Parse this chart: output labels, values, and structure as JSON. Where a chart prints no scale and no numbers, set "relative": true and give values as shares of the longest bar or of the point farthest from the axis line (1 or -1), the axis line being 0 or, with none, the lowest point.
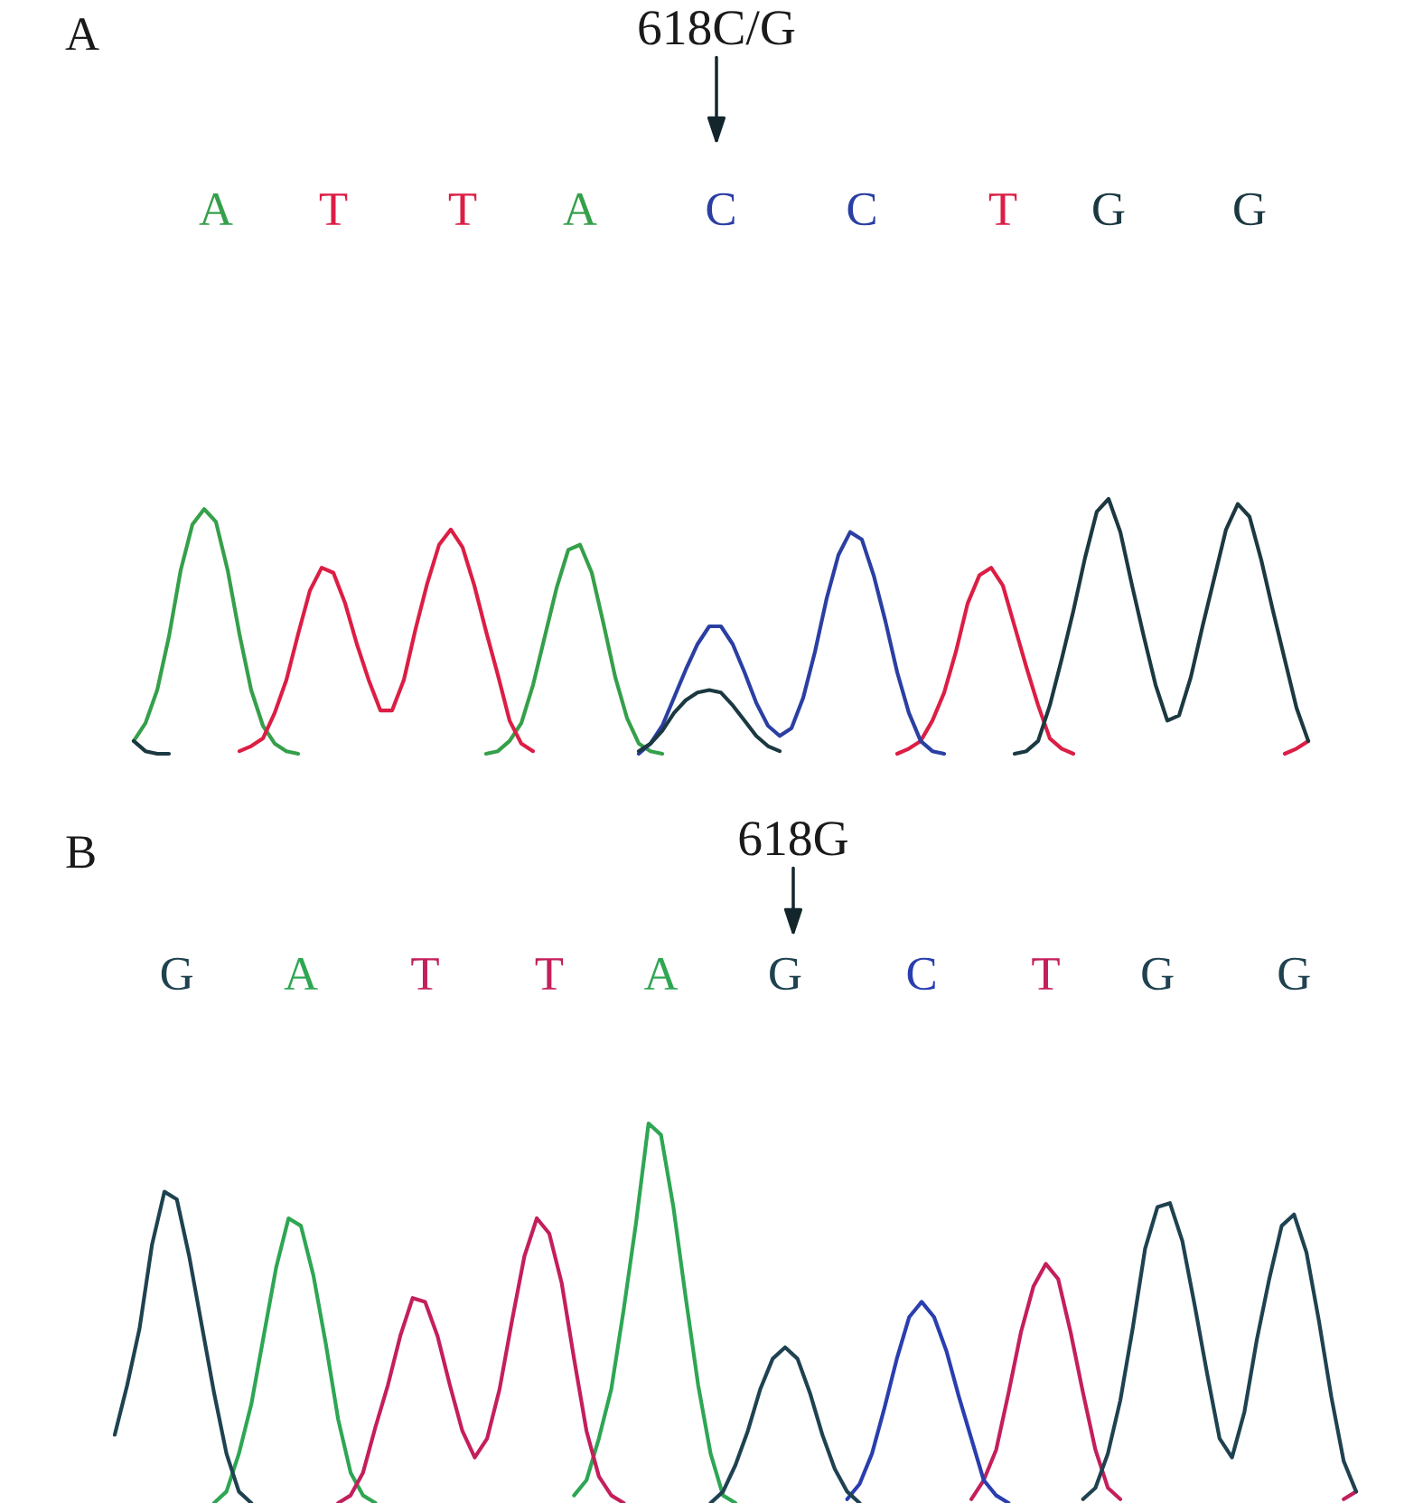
{
  "chart_data": [
    {
      "type": "line",
      "relative": true,
      "title": "A",
      "categories": [
        null,
        null,
        null,
        null,
        null,
        null,
        null,
        "A",
        null,
        null,
        null,
        null,
        null,
        null,
        null,
        null,
        null,
        "T",
        null,
        null,
        null,
        null,
        null,
        null,
        null,
        null,
        null,
        null,
        "T",
        null,
        null,
        null,
        null,
        null,
        null,
        null,
        null,
        null,
        "A",
        null,
        null,
        null,
        null,
        null,
        null,
        null,
        null,
        null,
        null,
        null,
        "C",
        null,
        null,
        null,
        null,
        null,
        null,
        null,
        null,
        null,
        null,
        null,
        "C",
        null,
        null,
        null,
        null,
        null,
        null,
        null,
        null,
        null,
        null,
        null,
        "T",
        null,
        null,
        null,
        null,
        null,
        null,
        null,
        null,
        "G",
        null,
        null,
        null,
        null,
        null,
        null,
        null,
        null,
        null,
        null,
        null,
        "G",
        null,
        null,
        null,
        null,
        null
      ],
      "annotations": [
        "618C/G"
      ],
      "series": [
        {
          "color": "#35a04a",
          "values": [
            0.05,
            0.12,
            0.25,
            0.46,
            0.72,
            0.9,
            0.96,
            0.91,
            0.72,
            0.47,
            0.25,
            0.11,
            0.04,
            0.01,
            0.0,
            null,
            null,
            null,
            null,
            null,
            null,
            null,
            null,
            null,
            null,
            null,
            null,
            null,
            null,
            null,
            0.0,
            0.01,
            0.05,
            0.12,
            0.27,
            0.46,
            0.65,
            0.8,
            0.82,
            0.71,
            0.51,
            0.3,
            0.14,
            0.04,
            0.01,
            0.0,
            null,
            null,
            null,
            null,
            null,
            null,
            null,
            null,
            null,
            null,
            null,
            null,
            null,
            null,
            null,
            null,
            null,
            null,
            null,
            null,
            null,
            null,
            null,
            null,
            null,
            null,
            null,
            null,
            null,
            null,
            null,
            null,
            null,
            null,
            null,
            null,
            null,
            null,
            null,
            null,
            null,
            null,
            null,
            null,
            null,
            null,
            null,
            null,
            null,
            null,
            null,
            null,
            null,
            null,
            null
          ]
        },
        {
          "color": "#dc1e45",
          "values": [
            null,
            null,
            null,
            null,
            null,
            null,
            null,
            null,
            null,
            0.01,
            0.03,
            0.06,
            0.16,
            0.29,
            0.47,
            0.64,
            0.73,
            0.71,
            0.59,
            0.43,
            0.29,
            0.17,
            0.17,
            0.29,
            0.49,
            0.67,
            0.82,
            0.88,
            0.81,
            0.66,
            0.48,
            0.31,
            0.13,
            0.04,
            0.01,
            null,
            null,
            null,
            null,
            null,
            null,
            null,
            null,
            null,
            null,
            null,
            null,
            null,
            null,
            null,
            null,
            null,
            null,
            null,
            null,
            null,
            null,
            null,
            null,
            null,
            null,
            null,
            null,
            null,
            null,
            0.0,
            0.02,
            0.05,
            0.13,
            0.24,
            0.4,
            0.59,
            0.7,
            0.73,
            0.66,
            0.5,
            0.34,
            0.19,
            0.06,
            0.02,
            0.0,
            null,
            null,
            null,
            null,
            null,
            null,
            null,
            null,
            null,
            null,
            null,
            null,
            null,
            null,
            null,
            null,
            null,
            0.0,
            0.02,
            0.05
          ]
        },
        {
          "color": "#2b3fa3",
          "values": [
            null,
            null,
            null,
            null,
            null,
            null,
            null,
            null,
            null,
            null,
            null,
            null,
            null,
            null,
            null,
            null,
            null,
            null,
            null,
            null,
            null,
            null,
            null,
            null,
            null,
            null,
            null,
            null,
            null,
            null,
            null,
            null,
            null,
            null,
            null,
            null,
            null,
            null,
            null,
            null,
            null,
            null,
            null,
            0.0,
            0.04,
            0.11,
            0.22,
            0.33,
            0.43,
            0.5,
            0.5,
            0.43,
            0.32,
            0.2,
            0.11,
            0.07,
            0.1,
            0.22,
            0.4,
            0.61,
            0.78,
            0.87,
            0.84,
            0.7,
            0.52,
            0.32,
            0.16,
            0.05,
            0.01,
            0.0,
            null,
            null,
            null,
            null,
            null,
            null,
            null,
            null,
            null,
            null,
            null,
            null,
            null,
            null,
            null,
            null,
            null,
            null,
            null,
            null,
            null,
            null,
            null,
            null,
            null,
            null,
            null,
            null,
            null,
            null,
            null
          ]
        },
        {
          "color": "#1c3942",
          "values": [
            0.05,
            0.01,
            0.0,
            0.0,
            null,
            null,
            null,
            null,
            null,
            null,
            null,
            null,
            null,
            null,
            null,
            null,
            null,
            null,
            null,
            null,
            null,
            null,
            null,
            null,
            null,
            null,
            null,
            null,
            null,
            null,
            null,
            null,
            null,
            null,
            null,
            null,
            null,
            null,
            null,
            null,
            null,
            null,
            null,
            0.01,
            0.04,
            0.09,
            0.16,
            0.21,
            0.24,
            0.25,
            0.24,
            0.19,
            0.13,
            0.07,
            0.03,
            0.01,
            null,
            null,
            null,
            null,
            null,
            null,
            null,
            null,
            null,
            null,
            null,
            null,
            null,
            null,
            null,
            null,
            null,
            null,
            null,
            0.0,
            0.01,
            0.05,
            0.19,
            0.37,
            0.56,
            0.77,
            0.95,
            1.0,
            0.87,
            0.66,
            0.46,
            0.27,
            0.13,
            0.15,
            0.3,
            0.5,
            0.69,
            0.88,
            0.98,
            0.93,
            0.76,
            0.56,
            0.37,
            0.18,
            0.05
          ]
        }
      ]
    },
    {
      "type": "line",
      "relative": true,
      "title": "B",
      "categories": [
        null,
        null,
        null,
        null,
        null,
        "G",
        null,
        null,
        null,
        null,
        null,
        null,
        null,
        null,
        null,
        "A",
        null,
        null,
        null,
        null,
        null,
        null,
        null,
        null,
        null,
        "T",
        null,
        null,
        null,
        null,
        null,
        null,
        null,
        null,
        null,
        "T",
        null,
        null,
        null,
        null,
        null,
        null,
        null,
        null,
        "A",
        null,
        null,
        null,
        null,
        null,
        null,
        null,
        null,
        null,
        "G",
        null,
        null,
        null,
        null,
        null,
        null,
        null,
        null,
        null,
        null,
        "C",
        null,
        null,
        null,
        null,
        null,
        null,
        null,
        null,
        null,
        "T",
        null,
        null,
        null,
        null,
        null,
        null,
        null,
        null,
        "G",
        null,
        null,
        null,
        null,
        null,
        null,
        null,
        null,
        null,
        null,
        "G",
        null,
        null,
        null,
        null,
        null
      ],
      "annotations": [
        "618G"
      ],
      "series": [
        {
          "color": "#2ea653",
          "values": [
            null,
            null,
            null,
            null,
            null,
            null,
            null,
            null,
            0.0,
            0.03,
            0.13,
            0.26,
            0.44,
            0.62,
            0.75,
            0.73,
            0.6,
            0.42,
            0.22,
            0.08,
            0.02,
            0.0,
            null,
            null,
            null,
            null,
            null,
            null,
            null,
            null,
            null,
            null,
            null,
            null,
            null,
            null,
            null,
            0.02,
            0.06,
            0.17,
            0.3,
            0.51,
            0.74,
            1.0,
            0.97,
            0.78,
            0.54,
            0.31,
            0.13,
            0.02,
            0.0,
            null,
            null,
            null,
            null,
            null,
            null,
            null,
            null,
            null,
            null,
            null,
            null,
            null,
            null,
            null,
            null,
            null,
            null,
            null,
            null,
            null,
            null,
            null,
            null,
            null,
            null,
            null,
            null,
            null,
            null,
            null,
            null,
            null,
            null,
            null,
            null,
            null,
            null,
            null,
            null,
            null,
            null,
            null,
            null,
            null,
            null,
            null,
            null,
            null,
            null
          ]
        },
        {
          "color": "#c41f5c",
          "values": [
            null,
            null,
            null,
            null,
            null,
            null,
            null,
            null,
            null,
            null,
            null,
            null,
            null,
            null,
            null,
            null,
            null,
            null,
            0.0,
            0.02,
            0.08,
            0.2,
            0.31,
            0.44,
            0.54,
            0.53,
            0.44,
            0.31,
            0.19,
            0.12,
            0.17,
            0.3,
            0.48,
            0.65,
            0.75,
            0.71,
            0.58,
            0.38,
            0.19,
            0.07,
            0.02,
            0.0,
            null,
            null,
            null,
            null,
            null,
            null,
            null,
            null,
            null,
            null,
            null,
            null,
            null,
            null,
            null,
            null,
            null,
            null,
            null,
            null,
            null,
            null,
            null,
            null,
            null,
            null,
            null,
            0.01,
            0.06,
            0.14,
            0.29,
            0.45,
            0.57,
            0.63,
            0.59,
            0.45,
            0.29,
            0.14,
            0.04,
            0.01,
            null,
            null,
            null,
            null,
            null,
            null,
            null,
            null,
            null,
            null,
            null,
            null,
            null,
            null,
            null,
            null,
            null,
            0.01,
            0.03
          ]
        },
        {
          "color": "#2a3eaf",
          "values": [
            null,
            null,
            null,
            null,
            null,
            null,
            null,
            null,
            null,
            null,
            null,
            null,
            null,
            null,
            null,
            null,
            null,
            null,
            null,
            null,
            null,
            null,
            null,
            null,
            null,
            null,
            null,
            null,
            null,
            null,
            null,
            null,
            null,
            null,
            null,
            null,
            null,
            null,
            null,
            null,
            null,
            null,
            null,
            null,
            null,
            null,
            null,
            null,
            null,
            null,
            null,
            null,
            null,
            null,
            null,
            null,
            null,
            null,
            null,
            0.01,
            0.05,
            0.13,
            0.25,
            0.38,
            0.49,
            0.53,
            0.49,
            0.4,
            0.28,
            0.17,
            0.06,
            0.02,
            0.0,
            null,
            null,
            null,
            null,
            null,
            null,
            null,
            null,
            null,
            null,
            null,
            null,
            null,
            null,
            null,
            null,
            null,
            null,
            null,
            null,
            null,
            null,
            null,
            null,
            null,
            null,
            null,
            null
          ]
        },
        {
          "color": "#1f4251",
          "values": [
            0.18,
            0.31,
            0.46,
            0.68,
            0.82,
            0.8,
            0.65,
            0.47,
            0.29,
            0.13,
            0.03,
            0.0,
            null,
            null,
            null,
            null,
            null,
            null,
            null,
            null,
            null,
            null,
            null,
            null,
            null,
            null,
            null,
            null,
            null,
            null,
            null,
            null,
            null,
            null,
            null,
            null,
            null,
            null,
            null,
            null,
            null,
            null,
            null,
            null,
            null,
            null,
            null,
            null,
            0.0,
            0.03,
            0.1,
            0.19,
            0.3,
            0.38,
            0.41,
            0.38,
            0.29,
            0.18,
            0.09,
            0.03,
            0.0,
            null,
            null,
            null,
            null,
            null,
            null,
            null,
            null,
            null,
            null,
            null,
            null,
            null,
            null,
            null,
            null,
            null,
            0.01,
            0.04,
            0.13,
            0.27,
            0.46,
            0.67,
            0.78,
            0.79,
            0.69,
            0.52,
            0.34,
            0.17,
            0.12,
            0.24,
            0.43,
            0.59,
            0.73,
            0.76,
            0.66,
            0.48,
            0.28,
            0.11,
            0.03
          ]
        }
      ]
    }
  ]
}
